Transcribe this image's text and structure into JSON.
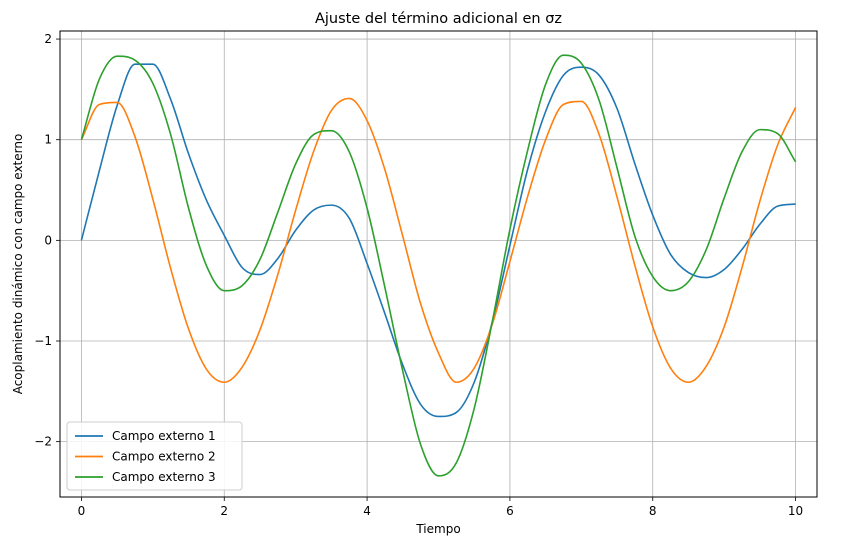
{
  "chart_data": {
    "type": "line",
    "title": "Ajuste del término adicional en σz",
    "xlabel": "Tiempo",
    "ylabel": "Acoplamiento dinámico con campo externo",
    "xlim": [
      -0.3,
      10.3
    ],
    "ylim": [
      -2.55,
      2.08
    ],
    "x_ticks": [
      0,
      2,
      4,
      6,
      8,
      10
    ],
    "x_tick_labels": [
      "0",
      "2",
      "4",
      "6",
      "8",
      "10"
    ],
    "y_ticks": [
      -2,
      -1,
      0,
      1,
      2
    ],
    "y_tick_labels": [
      "−2",
      "−1",
      "0",
      "1",
      "2"
    ],
    "grid": true,
    "legend_position": "lower-left",
    "x": [
      0.0,
      0.25,
      0.5,
      0.75,
      1.0,
      1.25,
      1.5,
      1.75,
      2.0,
      2.25,
      2.5,
      2.75,
      3.0,
      3.25,
      3.5,
      3.75,
      4.0,
      4.25,
      4.5,
      4.75,
      5.0,
      5.25,
      5.5,
      5.75,
      6.0,
      6.25,
      6.5,
      6.75,
      7.0,
      7.25,
      7.5,
      7.75,
      8.0,
      8.25,
      8.5,
      8.75,
      9.0,
      9.25,
      9.5,
      9.75,
      10.0
    ],
    "series": [
      {
        "name": "Campo externo 1",
        "color": "#1f77b4",
        "values": [
          0.0,
          0.69,
          1.34,
          1.75,
          1.75,
          1.4,
          0.86,
          0.4,
          0.05,
          -0.27,
          -0.34,
          -0.18,
          0.1,
          0.3,
          0.35,
          0.22,
          -0.23,
          -0.73,
          -1.24,
          -1.63,
          -1.75,
          -1.71,
          -1.41,
          -0.82,
          -0.05,
          0.71,
          1.28,
          1.64,
          1.72,
          1.64,
          1.31,
          0.76,
          0.25,
          -0.14,
          -0.32,
          -0.37,
          -0.29,
          -0.09,
          0.16,
          0.34,
          0.36
        ]
      },
      {
        "name": "Campo externo 2",
        "color": "#ff7f0e",
        "values": [
          1.0,
          1.35,
          1.37,
          1.03,
          0.41,
          -0.28,
          -0.88,
          -1.28,
          -1.41,
          -1.26,
          -0.89,
          -0.34,
          0.3,
          0.88,
          1.29,
          1.41,
          1.19,
          0.7,
          0.04,
          -0.63,
          -1.12,
          -1.41,
          -1.27,
          -0.84,
          -0.21,
          0.44,
          1.0,
          1.35,
          1.38,
          1.05,
          0.43,
          -0.25,
          -0.86,
          -1.27,
          -1.41,
          -1.25,
          -0.86,
          -0.27,
          0.39,
          0.95,
          1.32
        ]
      },
      {
        "name": "Campo externo 3",
        "color": "#2ca02c",
        "values": [
          1.0,
          1.6,
          1.83,
          1.79,
          1.56,
          1.05,
          0.32,
          -0.25,
          -0.5,
          -0.45,
          -0.19,
          0.28,
          0.76,
          1.05,
          1.09,
          0.88,
          0.32,
          -0.47,
          -1.3,
          -2.03,
          -2.34,
          -2.21,
          -1.67,
          -0.82,
          0.11,
          0.9,
          1.55,
          1.84,
          1.76,
          1.39,
          0.72,
          0.04,
          -0.36,
          -0.5,
          -0.41,
          -0.09,
          0.42,
          0.88,
          1.1,
          1.06,
          0.78
        ]
      }
    ]
  }
}
